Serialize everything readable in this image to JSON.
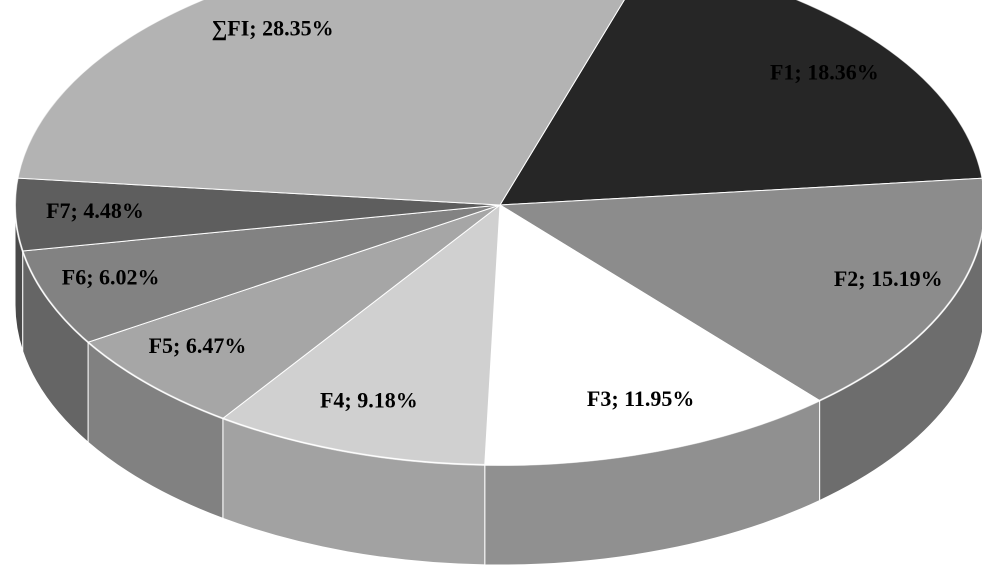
{
  "chart_data": {
    "type": "pie3d",
    "values": [
      18.36,
      15.19,
      11.95,
      9.18,
      6.47,
      6.02,
      4.48,
      28.35
    ],
    "value_labels": [
      "F1; 18.36%",
      "F2; 15.19%",
      "F3; 11.95%",
      "F4; 9.18%",
      "F5; 6.47%",
      "F6; 6.02%",
      "F7; 4.48%",
      "∑FI; 28.35%"
    ],
    "colors": [
      "#262626",
      "#8c8c8c",
      "#ffffff",
      "#d0d0d0",
      "#a6a6a6",
      "#828282",
      "#5e5e5e",
      "#b3b3b3"
    ]
  }
}
